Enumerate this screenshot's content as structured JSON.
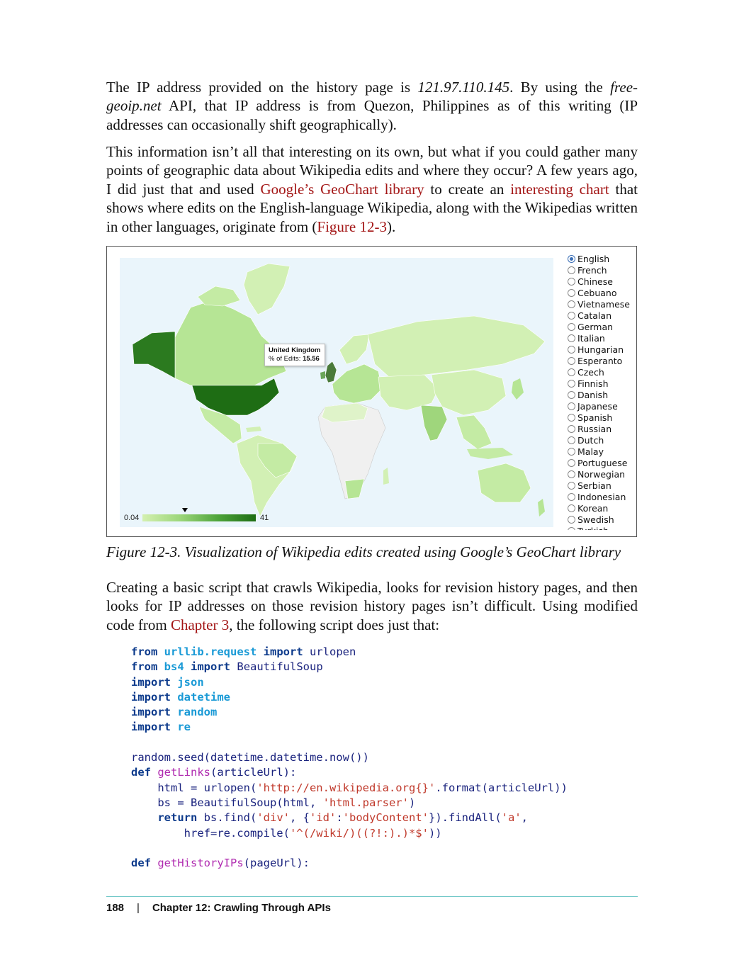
{
  "paragraphs": {
    "p1": {
      "t1": "The IP address provided on the history page is ",
      "ip": "121.97.110.145",
      "t2": ". By using the ",
      "api": "free-geoip.net",
      "t3": " API, that IP address is from Quezon, Philippines as of this writing (IP addresses can occasionally shift geographically)."
    },
    "p2": {
      "t1": "This information isn’t all that interesting on its own, but what if you could gather many points of geographic data about Wikipedia edits and where they occur? A few years ago, I did just that and used ",
      "link1": "Google’s GeoChart library",
      "t2": " to create an ",
      "link2": "interesting chart",
      "t3": " that shows where edits on the English-language Wikipedia, along with the Wikipedias written in other languages, originate from (",
      "link3": "Figure 12-3",
      "t4": ")."
    },
    "p3": {
      "t1": "Creating a basic script that crawls Wikipedia, looks for revision history pages, and then looks for IP addresses on those revision history pages isn’t difficult. Using modified code from ",
      "link1": "Chapter 3",
      "t2": ", the following script does just that:"
    }
  },
  "figure": {
    "tooltip": {
      "title": "United Kingdom",
      "label": "% of Edits: ",
      "value": "15.56"
    },
    "legend": {
      "min": "0.04",
      "max": "41"
    },
    "languages": [
      "English",
      "French",
      "Chinese",
      "Cebuano",
      "Vietnamese",
      "Catalan",
      "German",
      "Italian",
      "Hungarian",
      "Esperanto",
      "Czech",
      "Finnish",
      "Danish",
      "Japanese",
      "Spanish",
      "Russian",
      "Dutch",
      "Malay",
      "Portuguese",
      "Norwegian",
      "Serbian",
      "Indonesian",
      "Korean",
      "Swedish",
      "Turkish"
    ],
    "selected_language": "English",
    "colors": {
      "ocean": "#eaf5fb",
      "land_light": "#d2f0b4",
      "land_mid": "#a9df87",
      "land_dark": "#2b7a1f",
      "no_data": "#f0f0f0"
    },
    "caption": "Figure 12-3. Visualization of Wikipedia edits created using Google’s GeoChart library"
  },
  "code": {
    "l1": {
      "k1": "from",
      "m": "urllib.request",
      "k2": "import",
      "n": "urlopen"
    },
    "l2": {
      "k1": "from",
      "m": "bs4",
      "k2": "import",
      "n": "BeautifulSoup"
    },
    "l3": {
      "k": "import",
      "m": "json"
    },
    "l4": {
      "k": "import",
      "m": "datetime"
    },
    "l5": {
      "k": "import",
      "m": "random"
    },
    "l6": {
      "k": "import",
      "m": "re"
    },
    "l7": {
      "text": "random.seed(datetime.datetime.now())"
    },
    "l8": {
      "k": "def",
      "f": "getLinks",
      "rest": "(articleUrl):"
    },
    "l9": {
      "a": "html = urlopen(",
      "s": "'http://en.wikipedia.org{}'",
      "b": ".format(articleUrl))"
    },
    "l10": {
      "a": "bs = BeautifulSoup(html, ",
      "s": "'html.parser'",
      "b": ")"
    },
    "l11": {
      "k": "return",
      "a": " bs.find(",
      "s1": "'div'",
      "b": ", {",
      "s2": "'id'",
      "c": ":",
      "s3": "'bodyContent'",
      "d": "}).findAll(",
      "s4": "'a'",
      "e": ","
    },
    "l12": {
      "a": "href=re.compile(",
      "s": "'^(/wiki/)((?!:).)*$'",
      "b": "))"
    },
    "l13": {
      "k": "def",
      "f": "getHistoryIPs",
      "rest": "(pageUrl):"
    }
  },
  "footer": {
    "page": "188",
    "sep": "|",
    "chapter": "Chapter 12: Crawling Through APIs"
  }
}
